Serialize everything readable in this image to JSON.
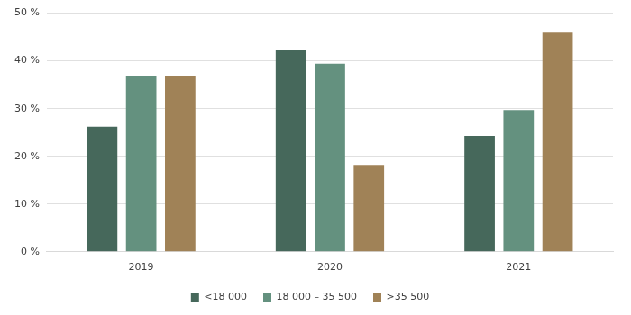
{
  "chart_data": {
    "type": "bar",
    "categories": [
      "2019",
      "2020",
      "2021"
    ],
    "series": [
      {
        "name": "<18 000",
        "color": "#46685b",
        "values": [
          26.2,
          42.2,
          24.3
        ]
      },
      {
        "name": "18 000 – 35 500",
        "color": "#64917f",
        "values": [
          36.8,
          39.4,
          29.7
        ]
      },
      {
        "name": ">35 500",
        "color": "#a08257",
        "values": [
          36.8,
          18.2,
          45.9
        ]
      }
    ],
    "ylim": [
      0,
      50
    ],
    "yticks": [
      {
        "value": 0,
        "label": "0 %"
      },
      {
        "value": 10,
        "label": "10 %"
      },
      {
        "value": 20,
        "label": "20 %"
      },
      {
        "value": 30,
        "label": "30 %"
      },
      {
        "value": 40,
        "label": "40 %"
      },
      {
        "value": 50,
        "label": "50 %"
      }
    ],
    "grid": true,
    "legend": "bottom"
  }
}
